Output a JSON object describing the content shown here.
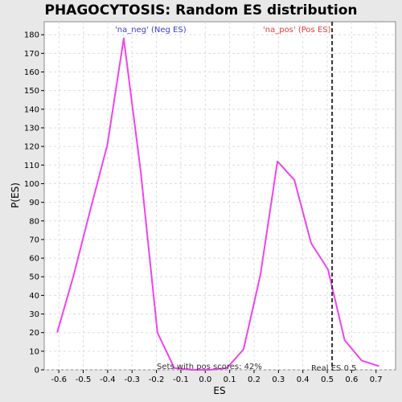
{
  "chart_data": {
    "type": "line",
    "title": "PHAGOCYTOSIS: Random ES distribution",
    "xlabel": "ES",
    "ylabel": "P(ES)",
    "xlim": [
      -0.66,
      0.78
    ],
    "ylim": [
      0,
      187
    ],
    "xticks": [
      -0.6,
      -0.5,
      -0.4,
      -0.3,
      -0.2,
      -0.1,
      0.0,
      0.1,
      0.2,
      0.3,
      0.4,
      0.5,
      0.6,
      0.7
    ],
    "xtick_labels": [
      "-0.6",
      "-0.5",
      "-0.4",
      "-0.3",
      "-0.2",
      "-0.1",
      "0.0",
      "0.1",
      "0.2",
      "0.3",
      "0.4",
      "0.5",
      "0.6",
      "0.7"
    ],
    "yticks": [
      0,
      10,
      20,
      30,
      40,
      50,
      60,
      70,
      80,
      90,
      100,
      110,
      120,
      130,
      140,
      150,
      160,
      170,
      180
    ],
    "ytick_labels": [
      "0",
      "10",
      "20",
      "30",
      "40",
      "50",
      "60",
      "70",
      "80",
      "90",
      "100",
      "110",
      "120",
      "130",
      "140",
      "150",
      "160",
      "170",
      "180"
    ],
    "grid": true,
    "series": [
      {
        "color": "#ee44ee",
        "x": [
          -0.607,
          -0.541,
          -0.471,
          -0.401,
          -0.334,
          -0.265,
          -0.196,
          -0.127,
          -0.059,
          0.02,
          0.089,
          0.157,
          0.226,
          0.296,
          0.365,
          0.434,
          0.503,
          0.571,
          0.641,
          0.712
        ],
        "y": [
          20,
          50,
          86,
          121,
          178,
          107,
          20,
          1,
          0,
          0,
          1,
          11,
          51,
          112,
          102,
          68,
          54,
          16,
          5,
          2
        ]
      }
    ],
    "reference_line": {
      "x": 0.52,
      "label": "Real ES 0.5",
      "color": "#333333"
    },
    "annotations": {
      "neg": {
        "text": "'na_neg' (Neg ES)",
        "color": "#3b3bdc"
      },
      "pos": {
        "text": "'na_pos' (Pos ES)",
        "color": "#e83a3a"
      },
      "sets_with_pos": {
        "text": "Sets with pos scores: 42%",
        "color": "#333333"
      }
    }
  }
}
